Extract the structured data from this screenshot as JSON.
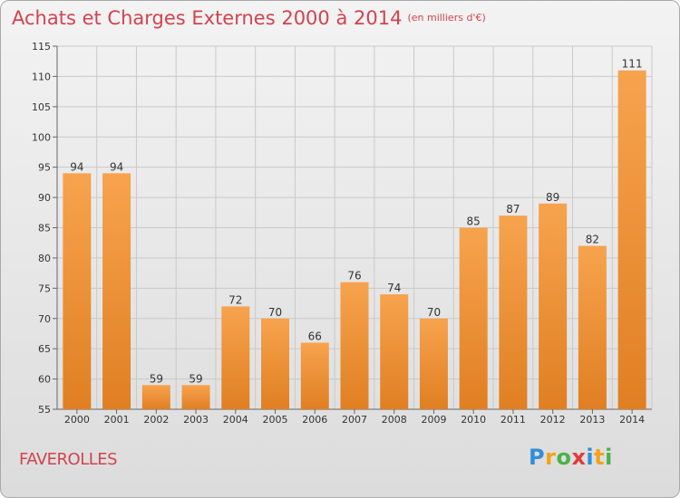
{
  "header": {
    "title": "Achats et Charges Externes 2000 à 2014",
    "unit": "(en milliers d'€)"
  },
  "footer": {
    "commune": "FAVEROLLES",
    "brand": "Proxiti",
    "brand_letters": [
      "P",
      "r",
      "o",
      "x",
      "i",
      "t",
      "i"
    ],
    "brand_colors": [
      "#2f8fd8",
      "#f2a21a",
      "#4bb24b",
      "#e23b3b",
      "#2f8fd8",
      "#f2a21a",
      "#4bb24b"
    ]
  },
  "colors": {
    "title": "#d2434f",
    "bar_top": "#f7a34e",
    "bar_bottom": "#e07f22",
    "grid": "#c9c9c9",
    "axis": "#666666"
  },
  "chart_data": {
    "type": "bar",
    "title": "Achats et Charges Externes 2000 à 2014",
    "categories": [
      "2000",
      "2001",
      "2002",
      "2003",
      "2004",
      "2005",
      "2006",
      "2007",
      "2008",
      "2009",
      "2010",
      "2011",
      "2012",
      "2013",
      "2014"
    ],
    "values": [
      94,
      94,
      59,
      59,
      72,
      70,
      66,
      76,
      74,
      70,
      85,
      87,
      89,
      82,
      111
    ],
    "xlabel": "",
    "ylabel": "",
    "ylim": [
      55,
      115
    ],
    "yticks": [
      55,
      60,
      65,
      70,
      75,
      80,
      85,
      90,
      95,
      100,
      105,
      110,
      115
    ],
    "grid": true,
    "data_labels": true
  }
}
